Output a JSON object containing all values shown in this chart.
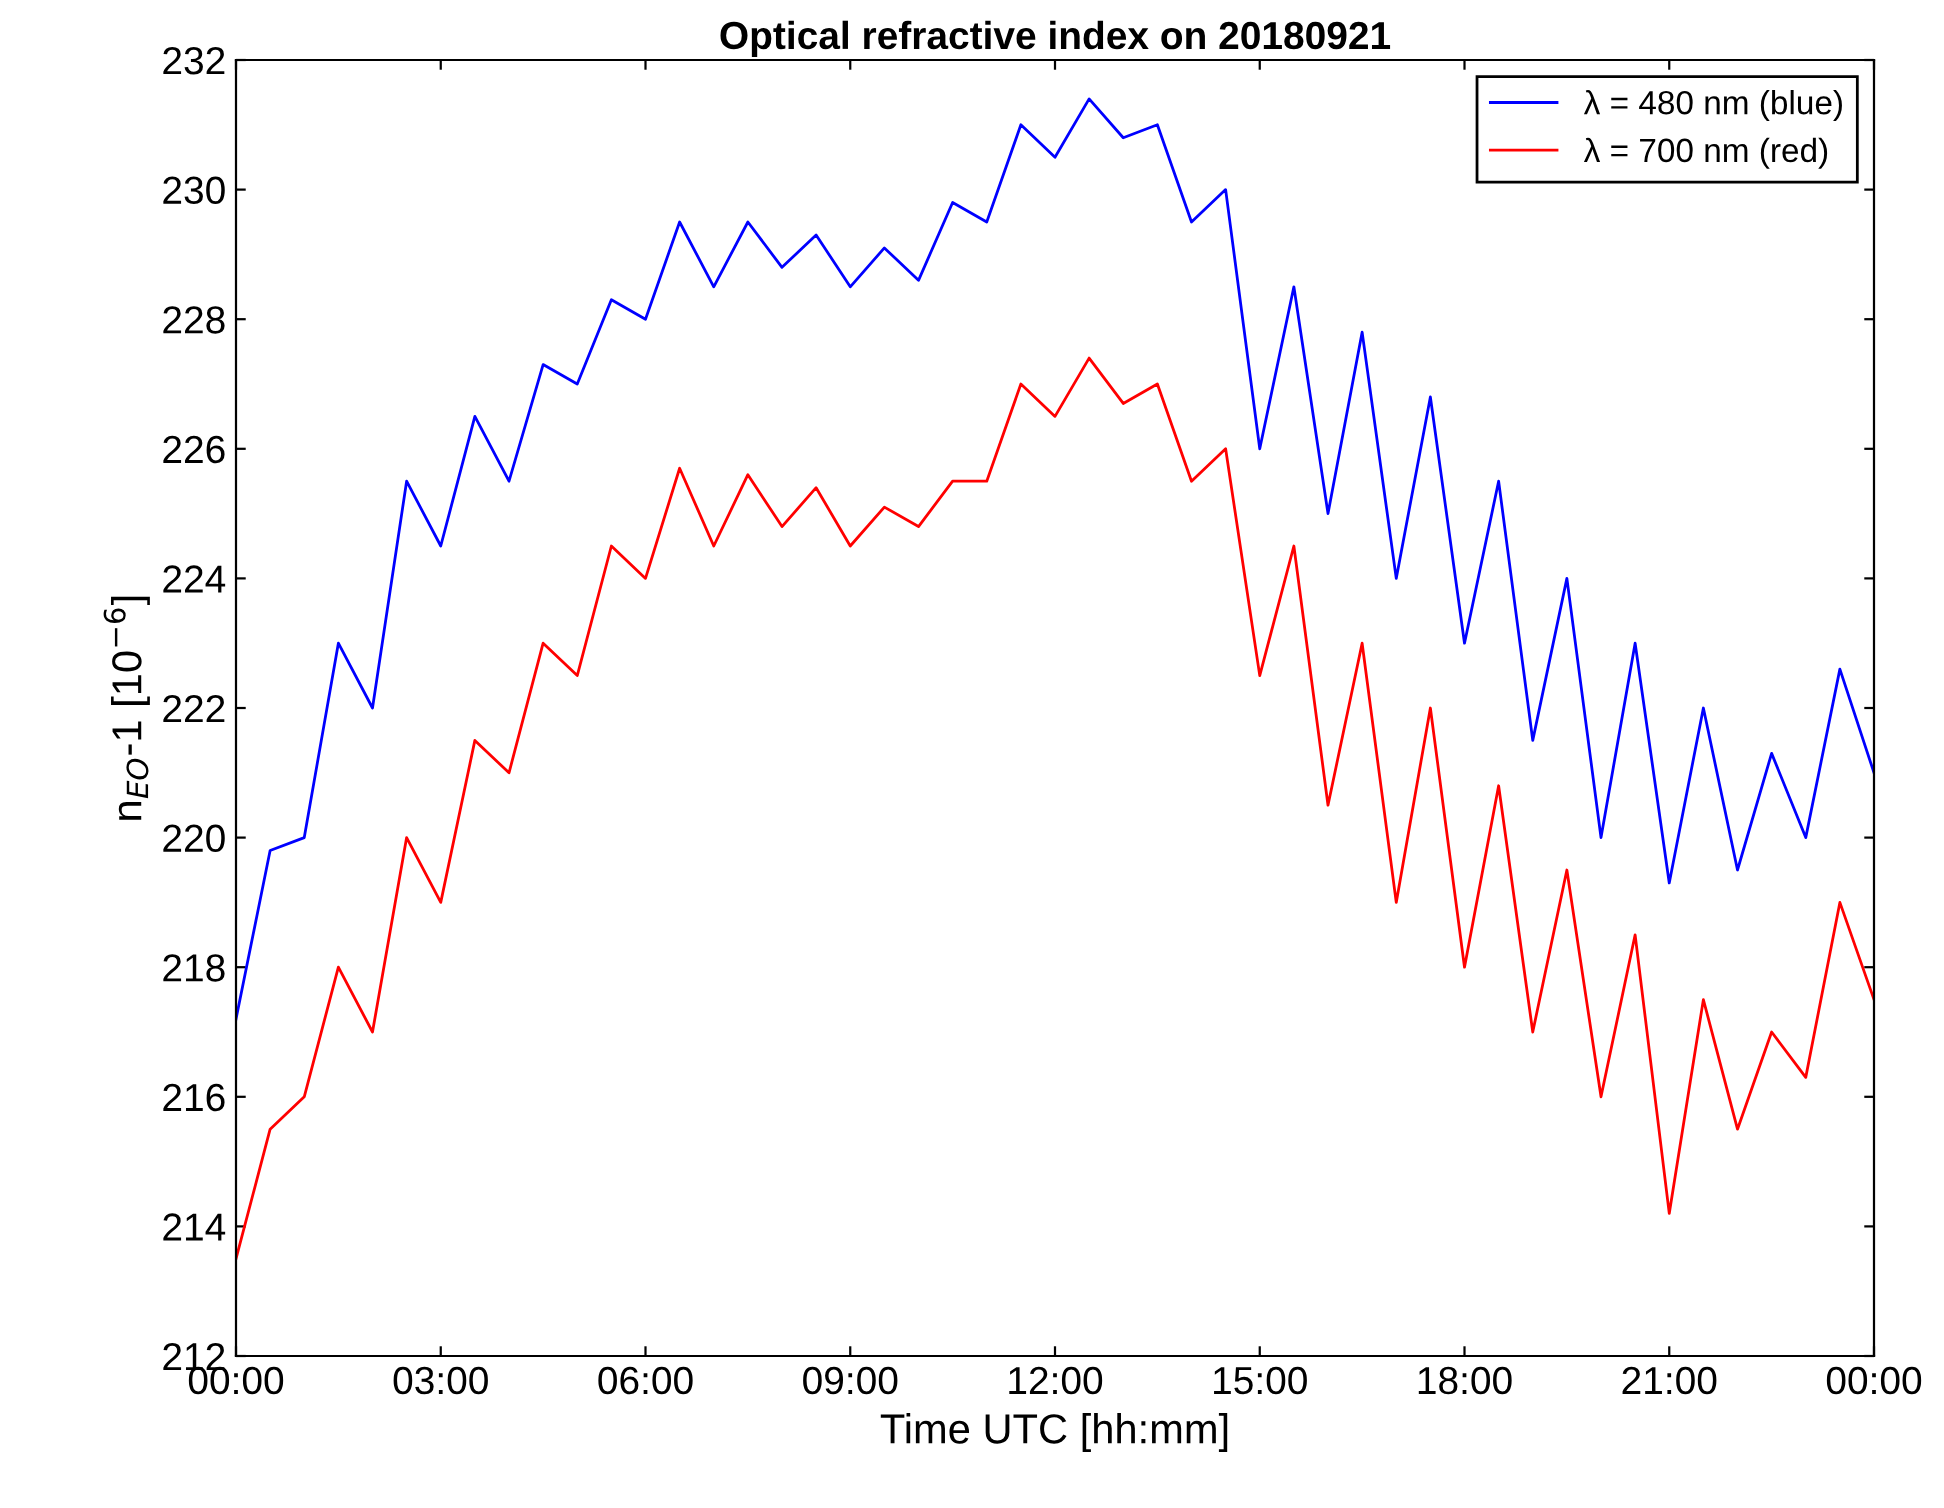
{
  "chart_data": {
    "type": "line",
    "title": "Optical refractive index on 20180921",
    "xlabel": "Time UTC [hh:mm]",
    "ylabel": "n$_{EO}$-1 [10$^{−6}$]",
    "x": [
      0,
      0.5,
      1,
      1.5,
      2,
      2.5,
      3,
      3.5,
      4,
      4.5,
      5,
      5.5,
      6,
      6.5,
      7,
      7.5,
      8,
      8.5,
      9,
      9.5,
      10,
      10.5,
      11,
      11.5,
      12,
      12.5,
      13,
      13.5,
      14,
      14.5,
      15,
      15.5,
      16,
      16.5,
      17,
      17.5,
      18,
      18.5,
      19,
      19.5,
      20,
      20.5,
      21,
      21.5,
      22,
      22.5,
      23,
      23.5,
      24
    ],
    "series": [
      {
        "name": "λ = 480 nm (blue)",
        "color": "#0000ff",
        "values": [
          217.2,
          219.8,
          220,
          223,
          222,
          225.5,
          224.5,
          226.5,
          225.5,
          227.3,
          227,
          228.3,
          228,
          229.5,
          228.5,
          229.5,
          228.8,
          229.3,
          228.5,
          229.1,
          228.6,
          229.8,
          229.5,
          231,
          230.5,
          231.4,
          230.8,
          231,
          229.5,
          230,
          226,
          228.5,
          225,
          227.8,
          224,
          226.8,
          223,
          225.5,
          221.5,
          224,
          220,
          223,
          219.3,
          222,
          219.5,
          221.3,
          220,
          222.6,
          221
        ]
      },
      {
        "name": "λ = 700 nm (red)",
        "color": "#ff0000",
        "values": [
          213.5,
          215.5,
          216,
          218,
          217,
          220,
          219,
          221.5,
          221,
          223,
          222.5,
          224.5,
          224,
          225.7,
          224.5,
          225.6,
          224.8,
          225.4,
          224.5,
          225.1,
          224.8,
          225.5,
          225.5,
          227,
          226.5,
          227.4,
          226.7,
          227,
          225.5,
          226,
          222.5,
          224.5,
          220.5,
          223,
          219,
          222,
          218,
          220.8,
          217,
          219.5,
          216,
          218.5,
          214.2,
          217.5,
          215.5,
          217,
          216.3,
          219,
          217.5
        ]
      }
    ],
    "xlim": [
      0,
      24
    ],
    "xticks": [
      {
        "value": 0,
        "label": "00:00"
      },
      {
        "value": 3,
        "label": "03:00"
      },
      {
        "value": 6,
        "label": "06:00"
      },
      {
        "value": 9,
        "label": "09:00"
      },
      {
        "value": 12,
        "label": "12:00"
      },
      {
        "value": 15,
        "label": "15:00"
      },
      {
        "value": 18,
        "label": "18:00"
      },
      {
        "value": 21,
        "label": "21:00"
      },
      {
        "value": 24,
        "label": "00:00"
      }
    ],
    "ylim": [
      212,
      232
    ],
    "yticks": [
      212,
      214,
      216,
      218,
      220,
      222,
      224,
      226,
      228,
      230,
      232
    ],
    "grid": false,
    "legend": "top right"
  }
}
